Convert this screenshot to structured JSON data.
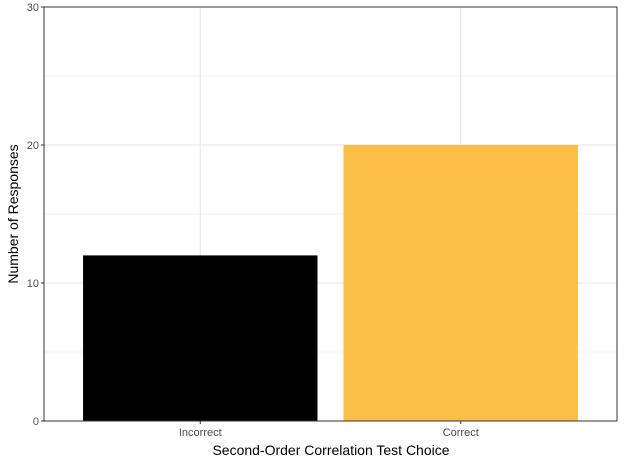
{
  "chart_data": {
    "type": "bar",
    "categories": [
      "Incorrect",
      "Correct"
    ],
    "values": [
      12,
      20
    ],
    "colors": [
      "#000000",
      "#FDBE48"
    ],
    "xlabel": "Second-Order Correlation Test Choice",
    "ylabel": "Number of Responses",
    "ylim": [
      0,
      30
    ],
    "y_ticks": [
      0,
      10,
      20,
      30
    ],
    "grid": true,
    "legend": "none",
    "theme": {
      "panel_border": "#333333",
      "grid_major": "#e6e6e6",
      "grid_minor": "#f2f2f2",
      "tick_text": "#4d4d4d"
    }
  }
}
